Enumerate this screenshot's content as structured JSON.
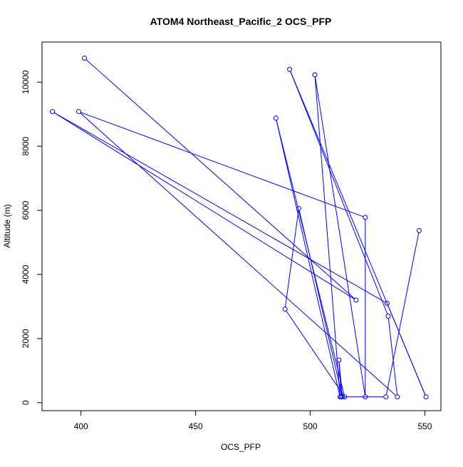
{
  "chart_data": {
    "type": "scatter",
    "title": "ATOM4 Northeast_Pacific_2 OCS_PFP",
    "xlabel": "OCS_PFP",
    "ylabel": "Altitude (m)",
    "xlim": [
      383,
      557
    ],
    "ylim": [
      -250,
      11250
    ],
    "x_ticks": [
      400,
      450,
      500,
      550
    ],
    "y_ticks": [
      0,
      2000,
      4000,
      6000,
      8000,
      10000
    ],
    "x_tick_labels": [
      "400",
      "450",
      "500",
      "550"
    ],
    "y_tick_labels": [
      "0",
      "2000",
      "4000",
      "6000",
      "8000",
      "10000"
    ],
    "line_color": "#0000ff",
    "marker": "open-circle",
    "grid": false,
    "series": [
      {
        "points": [
          {
            "x": 401.5,
            "y": 10750
          },
          {
            "x": 520,
            "y": 3200
          },
          {
            "x": 387.5,
            "y": 9080
          },
          {
            "x": 533.5,
            "y": 3100
          },
          {
            "x": 550.5,
            "y": 180
          },
          {
            "x": 491,
            "y": 10400
          },
          {
            "x": 534,
            "y": 2700
          },
          {
            "x": 538,
            "y": 180
          },
          {
            "x": 399,
            "y": 9080
          },
          {
            "x": 524,
            "y": 5780
          },
          {
            "x": 524,
            "y": 180
          },
          {
            "x": 502,
            "y": 10230
          },
          {
            "x": 513,
            "y": 180
          },
          {
            "x": 485,
            "y": 8880
          },
          {
            "x": 515,
            "y": 180
          },
          {
            "x": 489,
            "y": 2920
          },
          {
            "x": 495,
            "y": 6060
          },
          {
            "x": 514,
            "y": 180
          },
          {
            "x": 512.5,
            "y": 1330
          },
          {
            "x": 513.5,
            "y": 180
          },
          {
            "x": 533,
            "y": 180
          },
          {
            "x": 547.5,
            "y": 5370
          }
        ]
      }
    ]
  }
}
